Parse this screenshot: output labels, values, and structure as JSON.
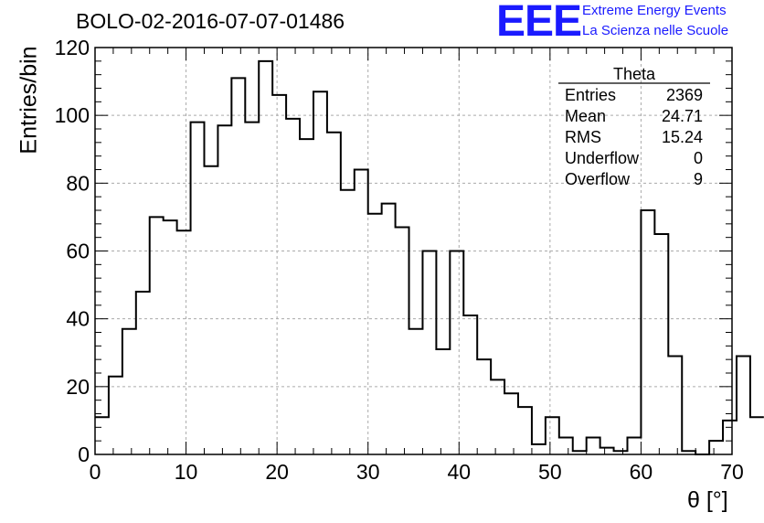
{
  "header": {
    "run_title": "BOLO-02-2016-07-07-01486",
    "logo_text": "EEE",
    "logo_line1": "Extreme Energy Events",
    "logo_line2": "La Scienza nelle Scuole",
    "logo_color": "#1a1aff"
  },
  "stats_box": {
    "title": "Theta",
    "rows": [
      {
        "label": "Entries",
        "value": "2369"
      },
      {
        "label": "Mean",
        "value": "24.71"
      },
      {
        "label": "RMS",
        "value": "15.24"
      },
      {
        "label": "Underflow",
        "value": "0"
      },
      {
        "label": "Overflow",
        "value": "9"
      }
    ]
  },
  "chart_data": {
    "type": "bar",
    "title": "BOLO-02-2016-07-07-01486",
    "xlabel": "θ [°]",
    "ylabel": "Entries/bin",
    "xlim": [
      0,
      70
    ],
    "ylim": [
      0,
      120
    ],
    "bin_width": 1.5,
    "bin_start": 0,
    "grid": true,
    "x_ticks": [
      0,
      10,
      20,
      30,
      40,
      50,
      60,
      70
    ],
    "y_ticks": [
      0,
      20,
      40,
      60,
      80,
      100,
      120
    ],
    "values": [
      11,
      23,
      37,
      48,
      70,
      69,
      66,
      98,
      85,
      97,
      111,
      98,
      116,
      106,
      99,
      93,
      107,
      95,
      78,
      84,
      71,
      74,
      67,
      37,
      60,
      31,
      60,
      41,
      28,
      22,
      18,
      14,
      3,
      11,
      5,
      1,
      5,
      2,
      1,
      5,
      72,
      65,
      29,
      1,
      0,
      4,
      10,
      29,
      11
    ]
  }
}
